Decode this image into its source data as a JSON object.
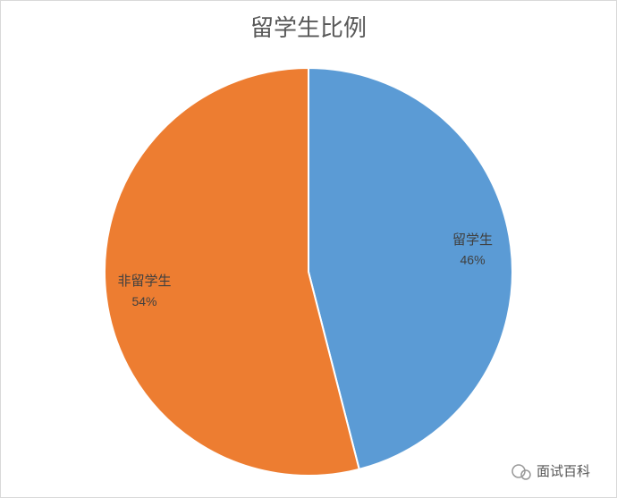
{
  "chart_data": {
    "type": "pie",
    "title": "留学生比例",
    "categories": [
      "留学生",
      "非留学生"
    ],
    "values": [
      46,
      54
    ],
    "value_labels": [
      "46%",
      "54%"
    ],
    "colors": [
      "#5b9bd5",
      "#ed7d31"
    ]
  },
  "watermark": "面试百科"
}
